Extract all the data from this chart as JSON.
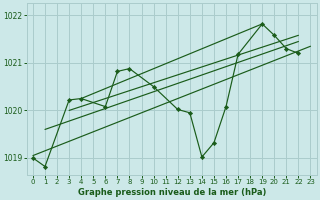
{
  "xlabel": "Graphe pression niveau de la mer (hPa)",
  "background_color": "#cce8e8",
  "grid_color": "#aacccc",
  "line_color": "#1a5c1a",
  "xlim": [
    -0.5,
    23.5
  ],
  "ylim": [
    1018.65,
    1022.25
  ],
  "yticks": [
    1019,
    1020,
    1021,
    1022
  ],
  "xticks": [
    0,
    1,
    2,
    3,
    4,
    5,
    6,
    7,
    8,
    9,
    10,
    11,
    12,
    13,
    14,
    15,
    16,
    17,
    18,
    19,
    20,
    21,
    22,
    23
  ],
  "main_x": [
    0,
    1,
    3,
    4,
    6,
    7,
    8,
    10,
    12,
    13,
    14,
    15,
    16,
    17,
    19,
    20,
    21,
    22
  ],
  "main_y": [
    1019.0,
    1018.82,
    1020.22,
    1020.25,
    1020.08,
    1020.82,
    1020.88,
    1020.5,
    1020.02,
    1019.95,
    1019.02,
    1019.32,
    1020.08,
    1021.18,
    1021.82,
    1021.58,
    1021.3,
    1021.2
  ],
  "trend_lines": [
    {
      "x": [
        0,
        23
      ],
      "y": [
        1019.05,
        1021.35
      ]
    },
    {
      "x": [
        1,
        22
      ],
      "y": [
        1019.6,
        1021.45
      ]
    },
    {
      "x": [
        3,
        22
      ],
      "y": [
        1020.0,
        1021.58
      ]
    },
    {
      "x": [
        4,
        19
      ],
      "y": [
        1020.25,
        1021.82
      ]
    }
  ]
}
